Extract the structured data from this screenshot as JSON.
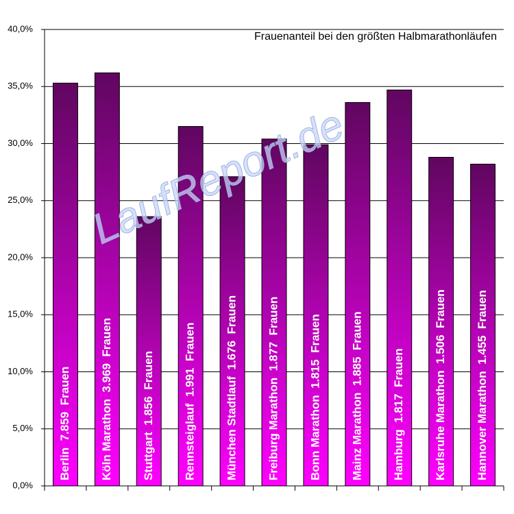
{
  "chart_data": {
    "type": "bar",
    "title": "Frauenanteil bei den größten Halbmarathonläufen",
    "watermark": "LaufReport.de",
    "categories": [
      "Berlin  7.859  Frauen",
      "Köln Marathon  3.969  Frauen",
      "Stuttgart  1.856  Frauen",
      "Rennsteiglauf  1.991  Frauen",
      "München Stadtlauf  1.676  Frauen",
      "Freiburg Marathon  1.877  Frauen",
      "Bonn Marathon  1.815  Frauen",
      "Mainz Marathon  1.885  Frauen",
      "Hamburg  1.817  Frauen",
      "Karlsruhe Marathon  1.506  Frauen",
      "Hannover Marathon  1.455  Frauen"
    ],
    "values": [
      35.3,
      36.2,
      23.6,
      31.5,
      27.1,
      30.4,
      29.9,
      33.6,
      34.7,
      28.8,
      28.2
    ],
    "color": "#ff00ff",
    "color_top": "#600660",
    "ylim": [
      0,
      40
    ],
    "yticks": [
      {
        "value": 0,
        "label": "0,0%"
      },
      {
        "value": 5,
        "label": "5,0%"
      },
      {
        "value": 10,
        "label": "10,0%"
      },
      {
        "value": 15,
        "label": "15,0%"
      },
      {
        "value": 20,
        "label": "20,0%"
      },
      {
        "value": 25,
        "label": "25,0%"
      },
      {
        "value": 30,
        "label": "30,0%"
      },
      {
        "value": 35,
        "label": "35,0%"
      },
      {
        "value": 40,
        "label": "40,0%"
      }
    ],
    "grid": true
  }
}
